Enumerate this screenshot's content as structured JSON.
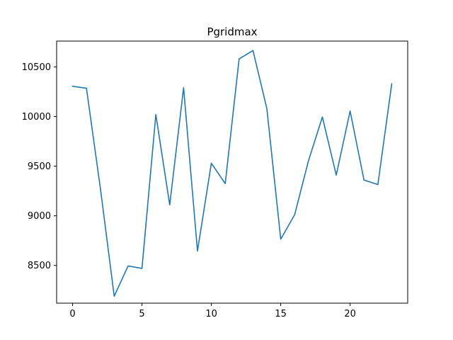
{
  "chart_data": {
    "type": "line",
    "title": "Pgridmax",
    "xlabel": "",
    "ylabel": "",
    "xlim": [
      -1.15,
      24.15
    ],
    "ylim": [
      8120,
      10760
    ],
    "x_ticks": [
      0,
      5,
      10,
      15,
      20
    ],
    "y_ticks": [
      8500,
      9000,
      9500,
      10000,
      10500
    ],
    "grid": false,
    "series": [
      {
        "color": "#1f77b4",
        "x": [
          0,
          1,
          2,
          3,
          4,
          5,
          6,
          7,
          8,
          9,
          10,
          11,
          12,
          13,
          14,
          15,
          16,
          17,
          18,
          19,
          20,
          21,
          22,
          23
        ],
        "values": [
          10305,
          10285,
          9280,
          8190,
          8495,
          8470,
          10020,
          9110,
          10290,
          8645,
          9530,
          9325,
          10580,
          10665,
          10080,
          8765,
          9010,
          9555,
          9995,
          9410,
          10055,
          9360,
          9315,
          10330
        ]
      }
    ]
  }
}
